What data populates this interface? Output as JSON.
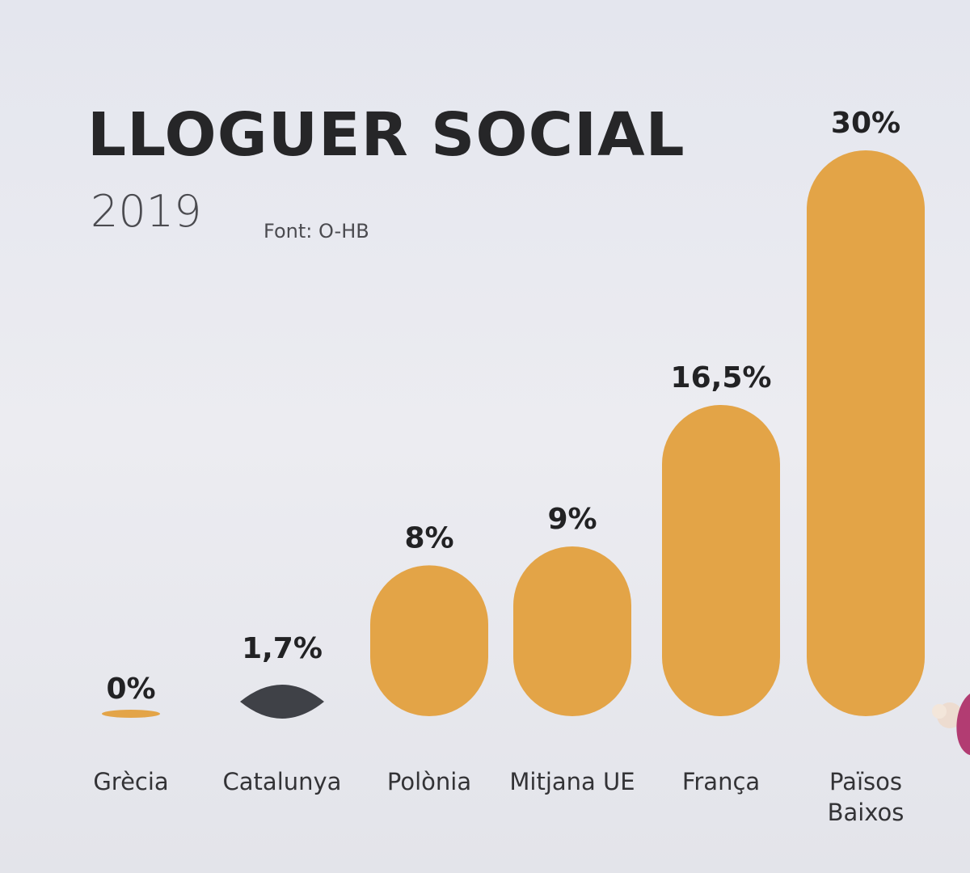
{
  "chart_data": {
    "type": "bar",
    "title": "LLOGUER SOCIAL",
    "subtitle": "2019",
    "source": "Font: O-HB",
    "categories": [
      "Grècia",
      "Catalunya",
      "Polònia",
      "Mitjana UE",
      "França",
      "Països Baixos"
    ],
    "category_lines": [
      [
        "Grècia"
      ],
      [
        "Catalunya"
      ],
      [
        "Polònia"
      ],
      [
        "Mitjana UE"
      ],
      [
        "França"
      ],
      [
        "Països",
        "Baixos"
      ]
    ],
    "values": [
      0,
      1.7,
      8,
      9,
      16.5,
      30
    ],
    "value_labels": [
      "0%",
      "1,7%",
      "8%",
      "9%",
      "16,5%",
      "30%"
    ],
    "bar_colors": [
      "#e3a447",
      "#3f4147",
      "#e3a447",
      "#e3a447",
      "#e3a447",
      "#e3a447"
    ],
    "ylim": [
      0,
      30
    ],
    "grid": false,
    "legend": false
  }
}
